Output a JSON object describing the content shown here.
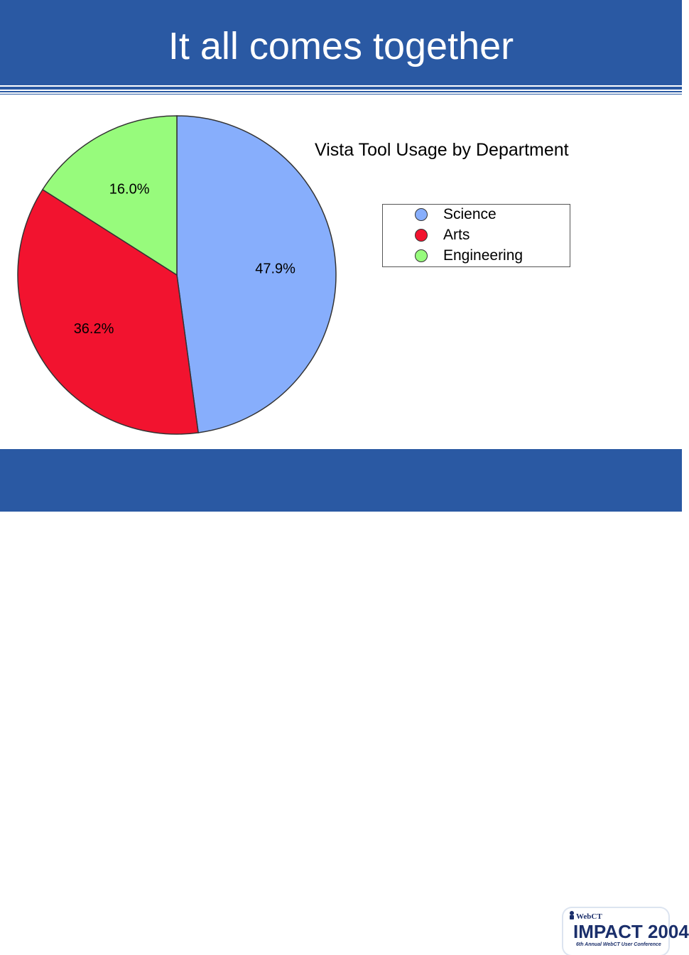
{
  "slide": {
    "title": "It all comes together"
  },
  "chart_data": {
    "type": "pie",
    "title": "Vista Tool Usage by Department",
    "categories": [
      "Science",
      "Arts",
      "Engineering"
    ],
    "values": [
      47.9,
      36.2,
      16.0
    ],
    "labels": [
      "47.9%",
      "36.2%",
      "16.0%"
    ],
    "colors": [
      "#87aefc",
      "#f2132f",
      "#97fb7c"
    ],
    "start": "12 o'clock",
    "direction": "clockwise",
    "legend_position": "right"
  },
  "legend": {
    "items": [
      {
        "label": "Science",
        "color": "#87aefc"
      },
      {
        "label": "Arts",
        "color": "#f2132f"
      },
      {
        "label": "Engineering",
        "color": "#97fb7c"
      }
    ]
  },
  "logo": {
    "brand": "WebCT",
    "name": "IMPACT 2004",
    "tagline": "6th Annual WebCT User Conference"
  },
  "colors": {
    "theme_blue": "#2a59a3",
    "logo_navy": "#1b2f6b"
  }
}
